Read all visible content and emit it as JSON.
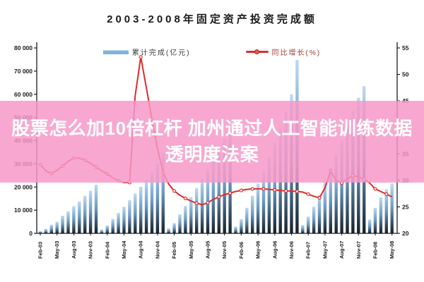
{
  "page": {
    "title": "2003-2008年固定资产投资完成额"
  },
  "legend": {
    "bar_label": "累计完成(亿元)",
    "line_label": "同比增长(%)"
  },
  "overlay": {
    "line1": "股票怎么加10倍杠杆 加州通过人工智能训练数据",
    "line2": "透明度法案",
    "background": "#f797c7",
    "text_color": "#ffffff"
  },
  "colors": {
    "bar_top": "#bcdaf4",
    "bar_mid": "#6d9bc3",
    "bar_bottom": "#16202c",
    "line": "#e02b2b",
    "axis": "#1a1a1a",
    "tick_text": "#1a1a1a"
  },
  "chart_data": {
    "type": "bar+line combo",
    "title": "2003-2008年固定资产投资完成额",
    "xlabel": "",
    "ylabel_left": "累计完成(亿元)",
    "ylabel_right": "同比增长(%)",
    "ylim_left": [
      0,
      80000
    ],
    "ylim_right": [
      20,
      55
    ],
    "grid": false,
    "legend_position": "top",
    "y_left_ticks": [
      "80 000",
      "70 000",
      "60 000",
      "50 000",
      "40 000",
      "30 000",
      "20 000",
      "10 000",
      "0"
    ],
    "y_left_tick_values": [
      80000,
      70000,
      60000,
      50000,
      40000,
      30000,
      20000,
      10000,
      0
    ],
    "y_right_ticks": [
      "55",
      "50",
      "45",
      "40",
      "35",
      "30",
      "25",
      "20"
    ],
    "y_right_tick_values": [
      55,
      50,
      45,
      40,
      35,
      30,
      25,
      20
    ],
    "x_tick_every": 3,
    "categories": [
      "Feb-03",
      "Mar-03",
      "Apr-03",
      "May-03",
      "Jun-03",
      "Jul-03",
      "Aug-03",
      "Sep-03",
      "Oct-03",
      "Nov-03",
      "Dec-03",
      "Jan-04",
      "Feb-04",
      "Mar-04",
      "Apr-04",
      "May-04",
      "Jun-04",
      "Jul-04",
      "Aug-04",
      "Sep-04",
      "Oct-04",
      "Nov-04",
      "Dec-04",
      "Jan-05",
      "Feb-05",
      "Mar-05",
      "Apr-05",
      "May-05",
      "Jun-05",
      "Jul-05",
      "Aug-05",
      "Sep-05",
      "Oct-05",
      "Nov-05",
      "Dec-05",
      "Jan-06",
      "Feb-06",
      "Mar-06",
      "Apr-06",
      "May-06",
      "Jun-06",
      "Jul-06",
      "Aug-06",
      "Sep-06",
      "Oct-06",
      "Nov-06",
      "Dec-06",
      "Jan-07",
      "Feb-07",
      "Mar-07",
      "Apr-07",
      "May-07",
      "Jun-07",
      "Jul-07",
      "Aug-07",
      "Sep-07",
      "Oct-07",
      "Nov-07",
      "Dec-07",
      "Jan-08",
      "Feb-08",
      "Mar-08",
      "Apr-08",
      "May-08"
    ],
    "series": [
      {
        "name": "累计完成(亿元)",
        "type": "bar",
        "axis": "left",
        "values": [
          900,
          1900,
          3700,
          5000,
          7600,
          9500,
          11700,
          13700,
          16200,
          18400,
          21000,
          1600,
          3400,
          6200,
          8800,
          11500,
          14300,
          17200,
          20100,
          23100,
          26300,
          30000,
          34500,
          2100,
          4400,
          8200,
          11800,
          15600,
          19500,
          23500,
          27600,
          31900,
          36300,
          40800,
          45500,
          2900,
          6100,
          11000,
          16200,
          21500,
          27000,
          33000,
          39000,
          45500,
          52500,
          60000,
          74800,
          3600,
          7200,
          11500,
          16500,
          22000,
          28000,
          34000,
          40000,
          46000,
          52800,
          58500,
          63500,
          6000,
          11000,
          15500,
          19000,
          21500
        ]
      },
      {
        "name": "同比增长(%)",
        "type": "line",
        "axis": "right",
        "values": [
          33.0,
          31.8,
          31.3,
          31.9,
          32.7,
          33.6,
          34.2,
          34.2,
          33.8,
          33.2,
          32.5,
          31.8,
          31.2,
          30.5,
          29.9,
          29.6,
          29.6,
          46.0,
          53.3,
          47.5,
          41.5,
          36.0,
          31.5,
          29.3,
          28.0,
          27.2,
          26.6,
          26.1,
          25.7,
          25.4,
          25.8,
          26.4,
          26.9,
          27.3,
          27.6,
          27.9,
          28.1,
          28.3,
          28.4,
          28.4,
          28.4,
          28.3,
          28.2,
          28.1,
          28.0,
          28.0,
          27.9,
          27.8,
          27.4,
          27.0,
          26.7,
          28.6,
          31.8,
          30.0,
          29.5,
          30.3,
          30.9,
          30.7,
          30.2,
          29.5,
          28.4,
          27.9,
          27.4,
          26.9
        ]
      }
    ]
  }
}
